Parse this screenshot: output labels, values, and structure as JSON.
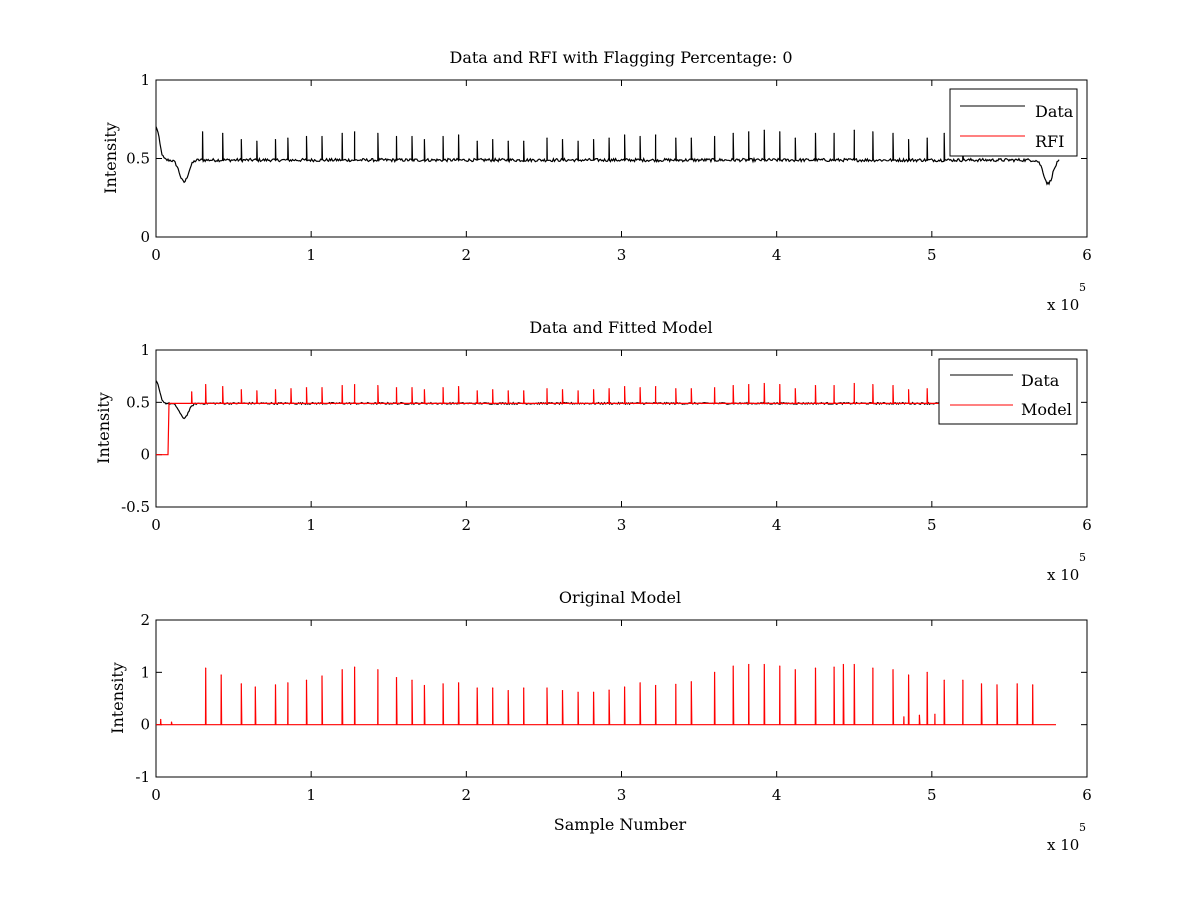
{
  "chart_data": [
    {
      "type": "line",
      "title": "Data and RFI with Flagging Percentage: 0",
      "xlabel": "",
      "ylabel": "Intensity",
      "xlim": [
        0,
        6
      ],
      "ylim": [
        0,
        1
      ],
      "xticks": [
        "0",
        "1",
        "2",
        "3",
        "4",
        "5",
        "6"
      ],
      "yticks": [
        "0",
        "0.5",
        "1"
      ],
      "x_exponent_base": "x 10",
      "x_exponent_power": "5",
      "legend_placement": "top-right",
      "series": [
        {
          "name": "Data",
          "color": "#000000",
          "baseline": 0.49,
          "noise": 0.01,
          "dips": [
            {
              "x": 0.0,
              "y": 0.7,
              "w": 0.03
            },
            {
              "x": 0.18,
              "y": 0.35,
              "w": 0.04
            },
            {
              "x": 5.75,
              "y": 0.34,
              "w": 0.04
            }
          ],
          "spike_x": [
            0.3,
            0.43,
            0.55,
            0.65,
            0.77,
            0.85,
            0.97,
            1.07,
            1.2,
            1.28,
            1.43,
            1.55,
            1.65,
            1.73,
            1.85,
            1.95,
            2.07,
            2.17,
            2.27,
            2.37,
            2.52,
            2.62,
            2.72,
            2.82,
            2.92,
            3.02,
            3.12,
            3.22,
            3.35,
            3.45,
            3.6,
            3.72,
            3.82,
            3.92,
            4.02,
            4.12,
            4.25,
            4.37,
            4.5,
            4.62,
            4.75,
            4.85,
            4.97,
            5.08,
            5.2
          ],
          "spike_y": [
            0.67,
            0.66,
            0.62,
            0.61,
            0.62,
            0.63,
            0.64,
            0.64,
            0.66,
            0.67,
            0.66,
            0.64,
            0.64,
            0.62,
            0.64,
            0.65,
            0.61,
            0.62,
            0.61,
            0.61,
            0.63,
            0.62,
            0.61,
            0.62,
            0.63,
            0.65,
            0.64,
            0.65,
            0.63,
            0.63,
            0.64,
            0.66,
            0.67,
            0.68,
            0.67,
            0.63,
            0.66,
            0.66,
            0.68,
            0.67,
            0.66,
            0.62,
            0.63,
            0.66,
            0.65
          ]
        },
        {
          "name": "RFI",
          "color": "#ff0000"
        }
      ]
    },
    {
      "type": "line",
      "title": "Data and Fitted Model",
      "xlabel": "",
      "ylabel": "Intensity",
      "xlim": [
        0,
        6
      ],
      "ylim": [
        -0.5,
        1
      ],
      "xticks": [
        "0",
        "1",
        "2",
        "3",
        "4",
        "5",
        "6"
      ],
      "yticks": [
        "-0.5",
        "0",
        "0.5",
        "1"
      ],
      "x_exponent_base": "x 10",
      "x_exponent_power": "5",
      "legend_placement": "top-right",
      "series": [
        {
          "name": "Data",
          "color": "#000000",
          "baseline": 0.49,
          "noise": 0.008,
          "dips": [
            {
              "x": 0.0,
              "y": 0.7,
              "w": 0.03
            },
            {
              "x": 0.18,
              "y": 0.35,
              "w": 0.04
            }
          ]
        },
        {
          "name": "Model",
          "color": "#ff0000",
          "baseline": 0.49,
          "zero_region": [
            0.0,
            0.08
          ],
          "spike_x": [
            0.23,
            0.32,
            0.43,
            0.55,
            0.65,
            0.77,
            0.87,
            0.97,
            1.07,
            1.2,
            1.28,
            1.43,
            1.55,
            1.65,
            1.73,
            1.85,
            1.95,
            2.07,
            2.17,
            2.27,
            2.37,
            2.52,
            2.62,
            2.72,
            2.82,
            2.92,
            3.02,
            3.12,
            3.22,
            3.35,
            3.45,
            3.6,
            3.72,
            3.82,
            3.92,
            4.02,
            4.12,
            4.25,
            4.37,
            4.5,
            4.62,
            4.75,
            4.85,
            4.97,
            5.08
          ],
          "spike_y": [
            0.6,
            0.67,
            0.65,
            0.62,
            0.61,
            0.62,
            0.63,
            0.64,
            0.64,
            0.66,
            0.67,
            0.66,
            0.64,
            0.64,
            0.62,
            0.64,
            0.65,
            0.61,
            0.62,
            0.61,
            0.61,
            0.63,
            0.62,
            0.61,
            0.62,
            0.63,
            0.65,
            0.64,
            0.65,
            0.63,
            0.63,
            0.64,
            0.66,
            0.67,
            0.68,
            0.67,
            0.63,
            0.66,
            0.66,
            0.68,
            0.67,
            0.66,
            0.62,
            0.63,
            0.66
          ]
        }
      ]
    },
    {
      "type": "line",
      "title": "Original Model",
      "xlabel": "Sample Number",
      "ylabel": "Intensity",
      "xlim": [
        0,
        6
      ],
      "ylim": [
        -1,
        2
      ],
      "xticks": [
        "0",
        "1",
        "2",
        "3",
        "4",
        "5",
        "6"
      ],
      "yticks": [
        "-1",
        "0",
        "1",
        "2"
      ],
      "x_exponent_base": "x 10",
      "x_exponent_power": "5",
      "series": [
        {
          "color": "#ff0000",
          "baseline": 0.0,
          "x_end": 5.8,
          "spike_x": [
            0.03,
            0.1,
            0.32,
            0.42,
            0.55,
            0.64,
            0.77,
            0.85,
            0.97,
            1.07,
            1.2,
            1.28,
            1.43,
            1.55,
            1.65,
            1.73,
            1.85,
            1.95,
            2.07,
            2.17,
            2.27,
            2.37,
            2.52,
            2.62,
            2.72,
            2.82,
            2.92,
            3.02,
            3.12,
            3.22,
            3.35,
            3.45,
            3.6,
            3.72,
            3.82,
            3.92,
            4.02,
            4.12,
            4.25,
            4.37,
            4.43,
            4.5,
            4.62,
            4.75,
            4.82,
            4.85,
            4.92,
            4.97,
            5.02,
            5.08,
            5.2,
            5.32,
            5.42,
            5.55,
            5.65
          ],
          "spike_y": [
            0.1,
            0.05,
            1.08,
            0.95,
            0.78,
            0.72,
            0.76,
            0.8,
            0.85,
            0.93,
            1.05,
            1.1,
            1.05,
            0.9,
            0.85,
            0.75,
            0.78,
            0.8,
            0.7,
            0.7,
            0.65,
            0.7,
            0.7,
            0.65,
            0.62,
            0.62,
            0.66,
            0.72,
            0.8,
            0.75,
            0.77,
            0.82,
            1.0,
            1.12,
            1.15,
            1.15,
            1.12,
            1.05,
            1.08,
            1.1,
            1.15,
            1.15,
            1.08,
            1.05,
            0.15,
            0.95,
            0.18,
            1.0,
            0.2,
            0.85,
            0.85,
            0.78,
            0.76,
            0.78,
            0.76
          ]
        }
      ]
    }
  ]
}
